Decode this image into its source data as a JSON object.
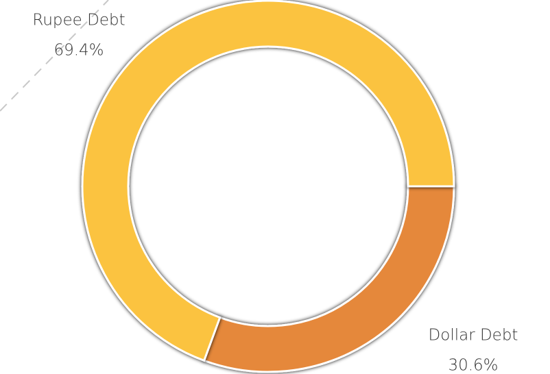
{
  "chart_data": {
    "type": "donut",
    "categories": [
      "Dollar Debt",
      "Rupee Debt"
    ],
    "values": [
      30.6,
      69.4
    ],
    "value_labels": [
      "30.6%",
      "69.4%"
    ],
    "colors": [
      "#e5883a",
      "#fbc33f"
    ]
  }
}
